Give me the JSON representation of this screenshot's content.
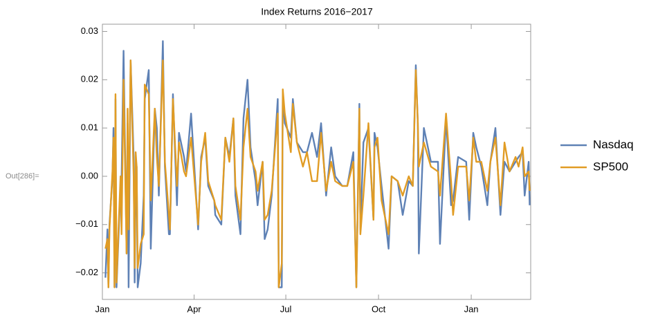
{
  "prompt_label": "Out[286]=",
  "chart_data": {
    "type": "line",
    "title": "Index Returns 2016−2017",
    "x": [
      "2016-01-04",
      "2016-01-06",
      "2016-01-07",
      "2016-01-08",
      "2016-01-11",
      "2016-01-12",
      "2016-01-13",
      "2016-01-14",
      "2016-01-15",
      "2016-01-19",
      "2016-01-20",
      "2016-01-22",
      "2016-01-25",
      "2016-01-26",
      "2016-01-27",
      "2016-01-29",
      "2016-02-01",
      "2016-02-02",
      "2016-02-03",
      "2016-02-04",
      "2016-02-05",
      "2016-02-08",
      "2016-02-11",
      "2016-02-12",
      "2016-02-16",
      "2016-02-18",
      "2016-02-22",
      "2016-02-24",
      "2016-02-26",
      "2016-03-01",
      "2016-03-03",
      "2016-03-07",
      "2016-03-08",
      "2016-03-11",
      "2016-03-15",
      "2016-03-17",
      "2016-03-22",
      "2016-03-24",
      "2016-03-29",
      "2016-04-05",
      "2016-04-08",
      "2016-04-12",
      "2016-04-15",
      "2016-04-21",
      "2016-04-22",
      "2016-04-28",
      "2016-05-02",
      "2016-05-06",
      "2016-05-10",
      "2016-05-12",
      "2016-05-17",
      "2016-05-20",
      "2016-05-24",
      "2016-05-27",
      "2016-06-01",
      "2016-06-03",
      "2016-06-08",
      "2016-06-10",
      "2016-06-13",
      "2016-06-17",
      "2016-06-23",
      "2016-06-24",
      "2016-06-27",
      "2016-06-28",
      "2016-06-30",
      "2016-07-06",
      "2016-07-08",
      "2016-07-12",
      "2016-07-18",
      "2016-07-22",
      "2016-07-27",
      "2016-08-01",
      "2016-08-05",
      "2016-08-10",
      "2016-08-15",
      "2016-08-19",
      "2016-08-26",
      "2016-08-31",
      "2016-09-06",
      "2016-09-09",
      "2016-09-12",
      "2016-09-13",
      "2016-09-16",
      "2016-09-21",
      "2016-09-26",
      "2016-09-27",
      "2016-09-30",
      "2016-10-04",
      "2016-10-11",
      "2016-10-14",
      "2016-10-20",
      "2016-10-25",
      "2016-10-31",
      "2016-11-04",
      "2016-11-07",
      "2016-11-09",
      "2016-11-10",
      "2016-11-15",
      "2016-11-22",
      "2016-11-29",
      "2016-12-01",
      "2016-12-07",
      "2016-12-12",
      "2016-12-14",
      "2016-12-19",
      "2016-12-27",
      "2016-12-30",
      "2017-01-03",
      "2017-01-06",
      "2017-01-11",
      "2017-01-17",
      "2017-01-20",
      "2017-01-25",
      "2017-01-30",
      "2017-02-03",
      "2017-02-08",
      "2017-02-14",
      "2017-02-17",
      "2017-02-21",
      "2017-02-23",
      "2017-02-27",
      "2017-02-28"
    ],
    "series": [
      {
        "name": "Nasdaq",
        "color": "#5e81b5",
        "values": [
          -0.021,
          -0.011,
          -0.023,
          -0.01,
          0.0,
          0.01,
          -0.023,
          0.016,
          -0.023,
          -0.002,
          -0.001,
          0.026,
          -0.016,
          0.011,
          -0.023,
          0.024,
          0.004,
          -0.022,
          -0.003,
          0.002,
          -0.023,
          -0.018,
          -0.004,
          0.016,
          0.022,
          -0.015,
          0.014,
          0.01,
          -0.004,
          0.028,
          0.002,
          -0.012,
          -0.012,
          0.017,
          -0.006,
          0.009,
          0.004,
          0.001,
          0.013,
          -0.011,
          0.004,
          0.008,
          -0.002,
          -0.005,
          -0.008,
          -0.01,
          0.008,
          0.004,
          0.012,
          -0.004,
          -0.012,
          0.012,
          0.02,
          0.006,
          -0.001,
          -0.006,
          0.003,
          -0.013,
          -0.011,
          -0.004,
          0.016,
          -0.023,
          -0.023,
          0.017,
          0.011,
          0.008,
          0.016,
          0.007,
          0.005,
          0.005,
          0.009,
          0.004,
          0.011,
          -0.004,
          0.006,
          0.0,
          -0.002,
          -0.002,
          0.005,
          -0.023,
          0.015,
          -0.011,
          0.007,
          0.01,
          -0.009,
          0.009,
          0.006,
          -0.002,
          -0.015,
          0.0,
          -0.001,
          -0.008,
          -0.001,
          -0.002,
          0.023,
          0.011,
          -0.016,
          0.01,
          0.003,
          0.003,
          -0.014,
          0.012,
          -0.006,
          -0.005,
          0.004,
          0.003,
          -0.009,
          0.009,
          0.006,
          0.002,
          -0.006,
          0.003,
          0.01,
          -0.008,
          0.003,
          0.001,
          0.003,
          0.004,
          0.005,
          -0.004,
          0.003,
          -0.006
        ]
      },
      {
        "name": "SP500",
        "color": "#e19c24",
        "values": [
          -0.015,
          -0.013,
          -0.023,
          -0.011,
          0.001,
          0.008,
          -0.023,
          0.017,
          -0.022,
          0.0,
          -0.012,
          0.02,
          -0.016,
          0.014,
          -0.011,
          0.024,
          0.0,
          -0.019,
          0.005,
          0.002,
          -0.019,
          -0.014,
          -0.012,
          0.019,
          0.017,
          -0.005,
          0.014,
          0.004,
          -0.002,
          0.024,
          0.003,
          -0.008,
          -0.011,
          0.016,
          -0.002,
          0.007,
          0.001,
          0.0,
          0.008,
          -0.01,
          0.003,
          0.009,
          -0.001,
          -0.005,
          -0.006,
          -0.009,
          0.008,
          0.003,
          0.012,
          -0.002,
          -0.009,
          0.006,
          0.014,
          0.004,
          0.001,
          -0.003,
          0.003,
          -0.009,
          -0.008,
          -0.003,
          0.013,
          -0.023,
          -0.018,
          0.018,
          0.013,
          0.005,
          0.015,
          0.007,
          0.002,
          0.005,
          -0.001,
          -0.001,
          0.009,
          -0.003,
          0.003,
          -0.001,
          -0.002,
          -0.002,
          0.003,
          -0.023,
          0.014,
          -0.012,
          -0.004,
          0.011,
          -0.009,
          0.006,
          0.008,
          -0.005,
          -0.012,
          0.0,
          -0.001,
          -0.004,
          0.0,
          -0.002,
          0.022,
          0.011,
          0.002,
          0.007,
          0.002,
          0.001,
          -0.004,
          0.013,
          -0.001,
          -0.008,
          0.002,
          0.002,
          -0.005,
          0.008,
          0.003,
          0.003,
          -0.003,
          0.003,
          0.008,
          -0.006,
          0.007,
          0.001,
          0.004,
          0.002,
          0.006,
          0.0,
          0.001,
          -0.003
        ]
      }
    ],
    "xlim": [
      "2016-01-01",
      "2017-03-01"
    ],
    "xticks": [
      {
        "value": "2016-01-01",
        "label": "Jan"
      },
      {
        "value": "2016-04-01",
        "label": "Apr"
      },
      {
        "value": "2016-07-01",
        "label": "Jul"
      },
      {
        "value": "2016-10-01",
        "label": "Oct"
      },
      {
        "value": "2017-01-01",
        "label": "Jan"
      }
    ],
    "ylim": [
      -0.0255,
      0.0315
    ],
    "yticks": [
      {
        "value": -0.02,
        "label": "−0.02"
      },
      {
        "value": -0.01,
        "label": "−0.01"
      },
      {
        "value": 0,
        "label": "0.00"
      },
      0.01,
      0.02,
      0.03
    ],
    "legend": "right"
  }
}
